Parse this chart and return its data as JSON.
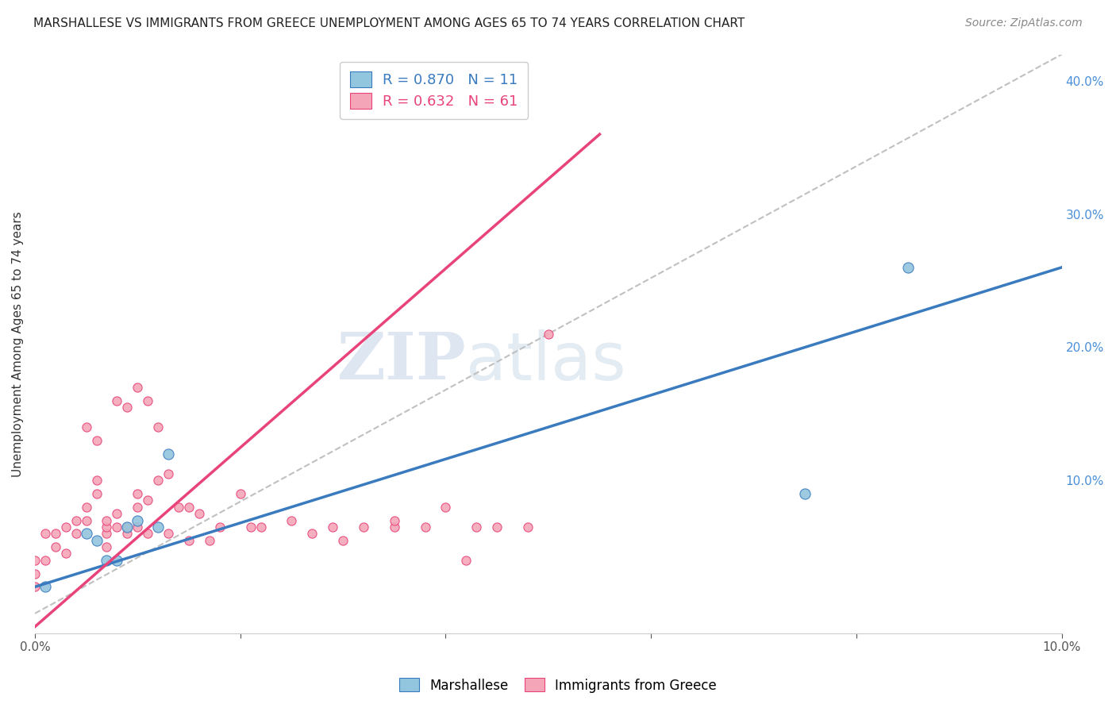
{
  "title": "MARSHALLESE VS IMMIGRANTS FROM GREECE UNEMPLOYMENT AMONG AGES 65 TO 74 YEARS CORRELATION CHART",
  "source": "Source: ZipAtlas.com",
  "ylabel": "Unemployment Among Ages 65 to 74 years",
  "xmin": 0.0,
  "xmax": 0.1,
  "ymin": -0.015,
  "ymax": 0.42,
  "legend_blue_r": "0.870",
  "legend_blue_n": "11",
  "legend_pink_r": "0.632",
  "legend_pink_n": "61",
  "blue_color": "#92c5de",
  "pink_color": "#f4a6b8",
  "blue_line_color": "#3a7bbf",
  "pink_line_color": "#e8447a",
  "diag_line_color": "#c0c0c0",
  "watermark_zip": "ZIP",
  "watermark_atlas": "atlas",
  "blue_scatter_size": 90,
  "pink_scatter_size": 65,
  "background_color": "#ffffff",
  "grid_color": "#e0e0e0",
  "blue_points_x": [
    0.001,
    0.005,
    0.006,
    0.007,
    0.008,
    0.009,
    0.01,
    0.012,
    0.013,
    0.075,
    0.085
  ],
  "blue_points_y": [
    0.02,
    0.06,
    0.055,
    0.04,
    0.04,
    0.065,
    0.07,
    0.065,
    0.12,
    0.09,
    0.26
  ],
  "pink_points_x": [
    0.0,
    0.0,
    0.0,
    0.001,
    0.001,
    0.002,
    0.002,
    0.003,
    0.003,
    0.004,
    0.004,
    0.005,
    0.005,
    0.005,
    0.006,
    0.006,
    0.006,
    0.007,
    0.007,
    0.007,
    0.007,
    0.008,
    0.008,
    0.008,
    0.009,
    0.009,
    0.009,
    0.01,
    0.01,
    0.01,
    0.01,
    0.011,
    0.011,
    0.011,
    0.012,
    0.012,
    0.013,
    0.013,
    0.014,
    0.015,
    0.015,
    0.016,
    0.017,
    0.018,
    0.02,
    0.021,
    0.022,
    0.025,
    0.027,
    0.029,
    0.03,
    0.032,
    0.035,
    0.035,
    0.038,
    0.04,
    0.042,
    0.043,
    0.045,
    0.048,
    0.05
  ],
  "pink_points_y": [
    0.02,
    0.03,
    0.04,
    0.04,
    0.06,
    0.05,
    0.06,
    0.045,
    0.065,
    0.06,
    0.07,
    0.07,
    0.08,
    0.14,
    0.09,
    0.1,
    0.13,
    0.05,
    0.06,
    0.065,
    0.07,
    0.065,
    0.075,
    0.16,
    0.06,
    0.065,
    0.155,
    0.065,
    0.08,
    0.09,
    0.17,
    0.06,
    0.085,
    0.16,
    0.1,
    0.14,
    0.06,
    0.105,
    0.08,
    0.055,
    0.08,
    0.075,
    0.055,
    0.065,
    0.09,
    0.065,
    0.065,
    0.07,
    0.06,
    0.065,
    0.055,
    0.065,
    0.065,
    0.07,
    0.065,
    0.08,
    0.04,
    0.065,
    0.065,
    0.065,
    0.21
  ],
  "blue_line_x": [
    0.0,
    0.1
  ],
  "blue_line_y": [
    0.02,
    0.26
  ],
  "pink_line_x": [
    0.0,
    0.055
  ],
  "pink_line_y": [
    -0.01,
    0.36
  ],
  "diag_line_x": [
    0.0,
    0.1
  ],
  "diag_line_y": [
    0.0,
    0.42
  ]
}
